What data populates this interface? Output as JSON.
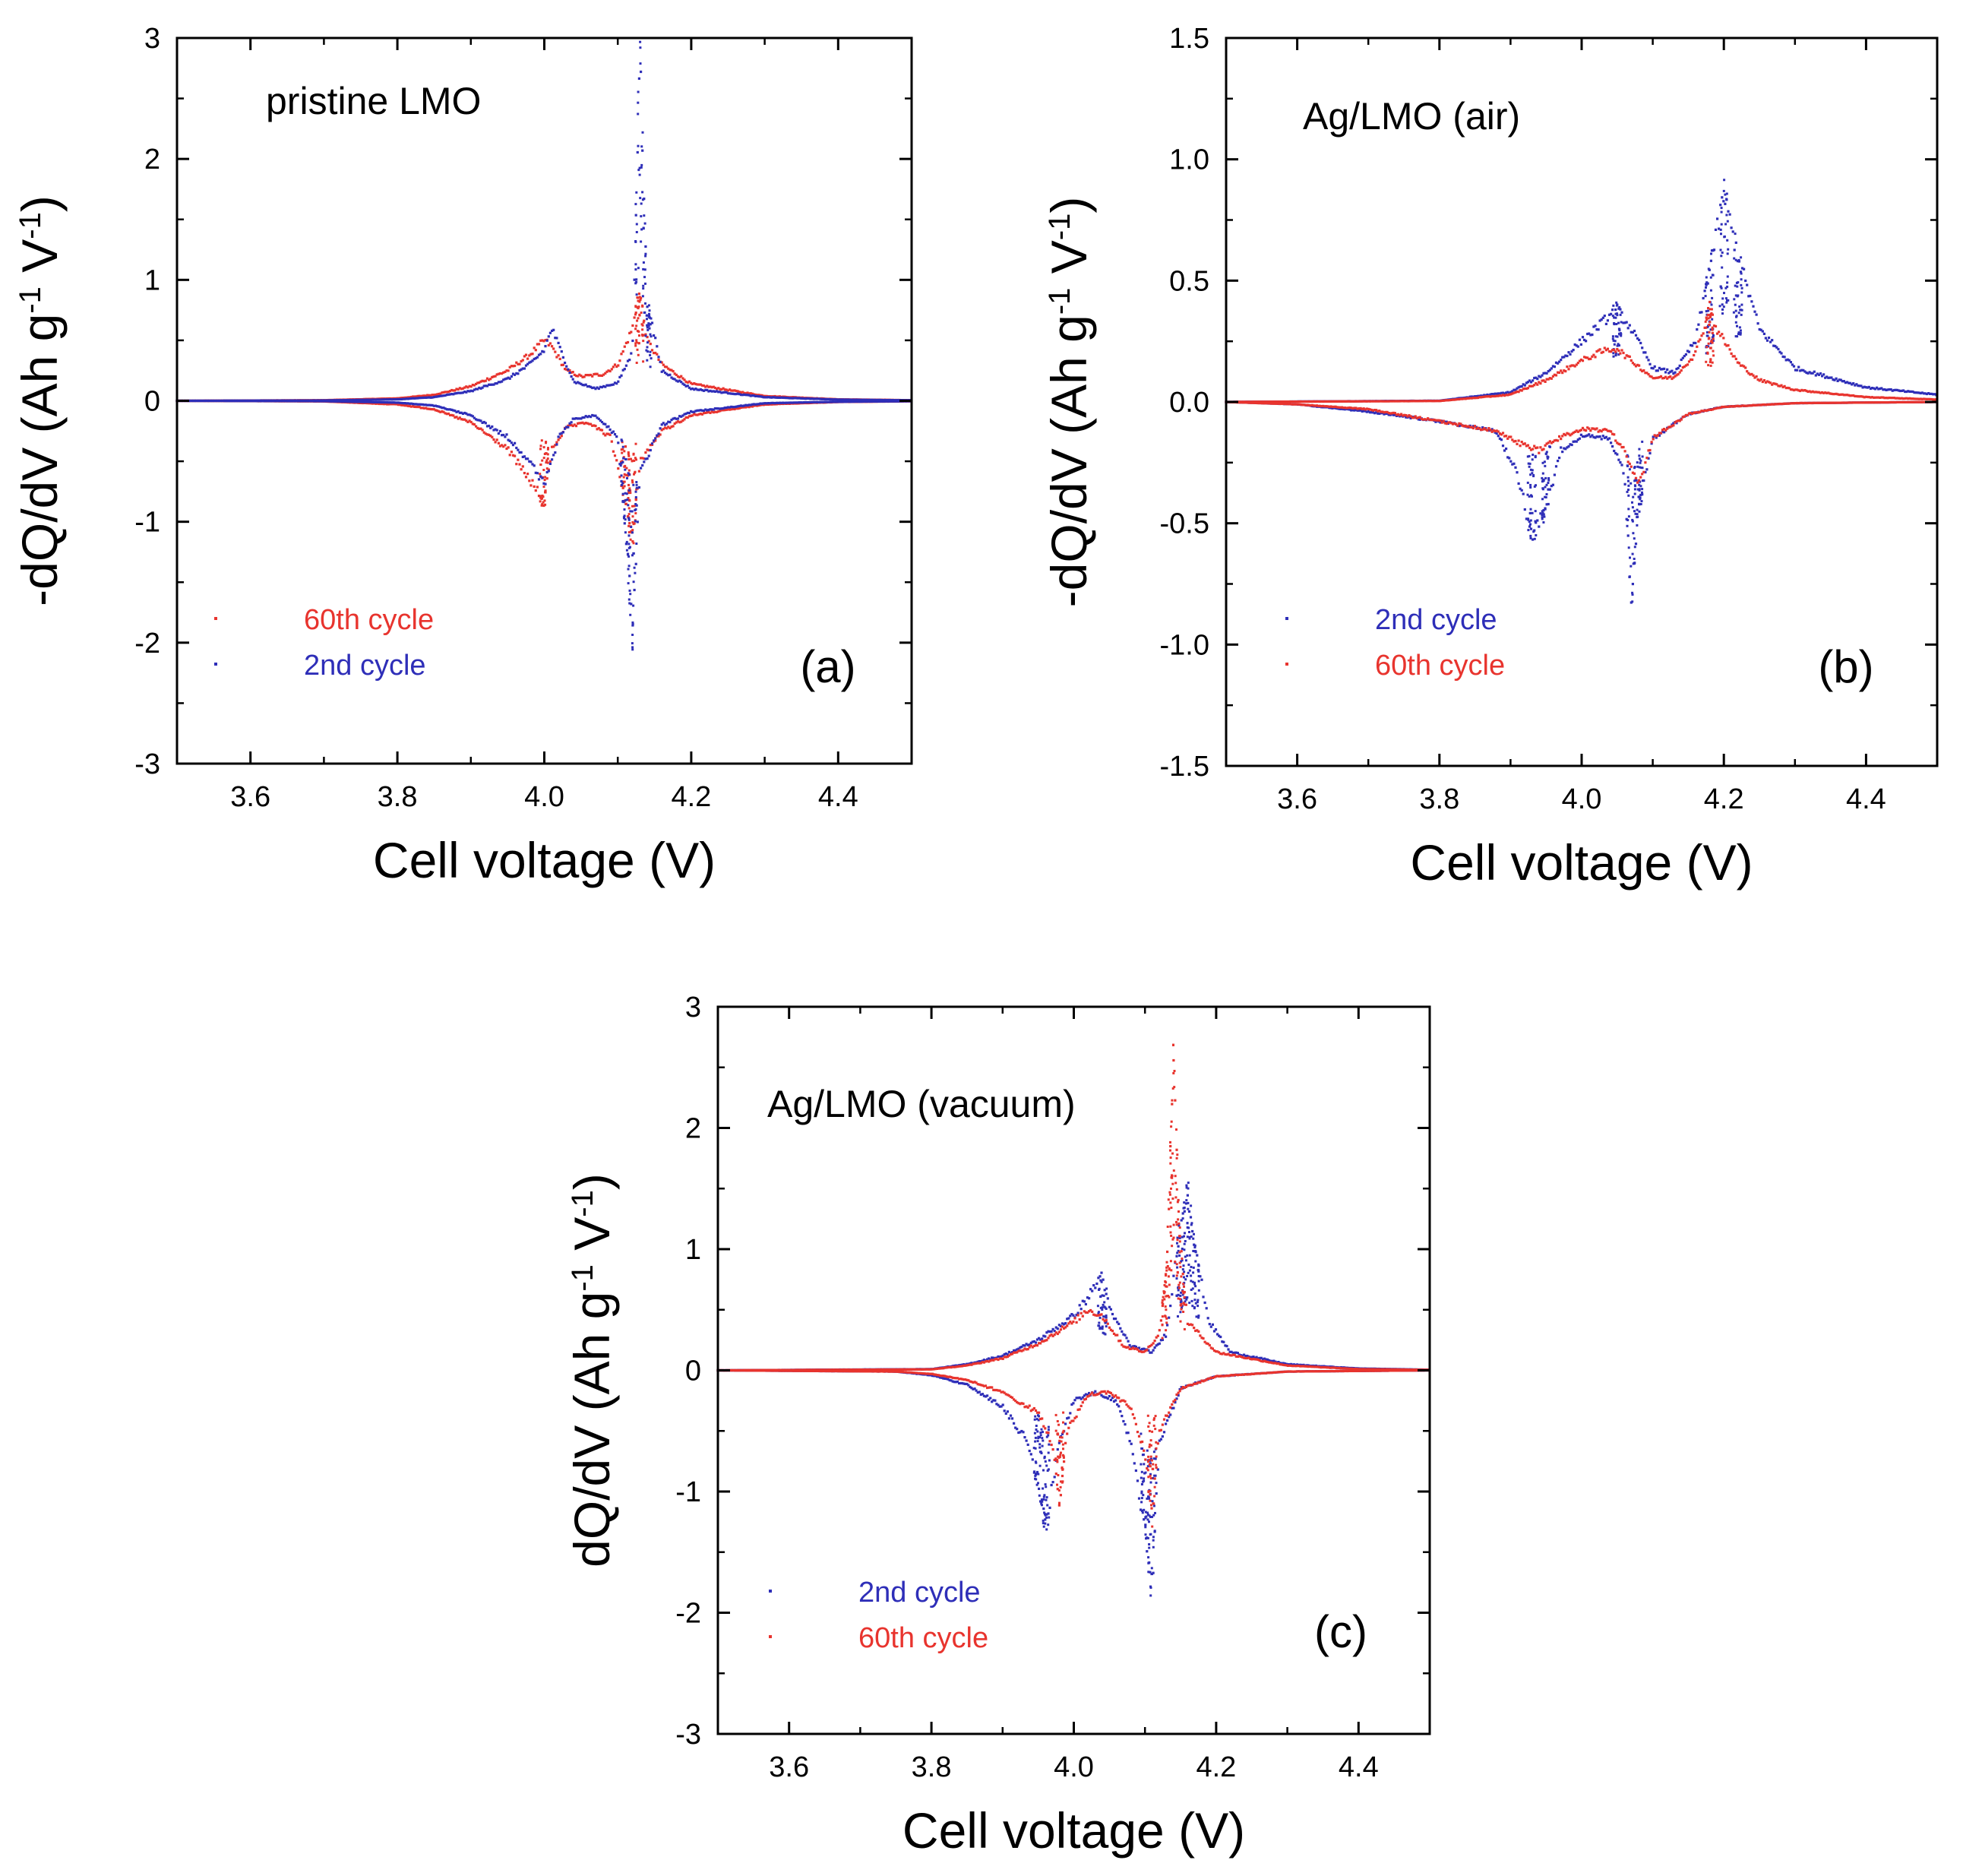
{
  "series_colors": {
    "60th cycle": "#e8342e",
    "2nd cycle": "#2e2eb8"
  },
  "chart_data": [
    {
      "type": "scatter",
      "panel_label": "(a)",
      "annotation": "pristine LMO",
      "xlabel": "Cell voltage (V)",
      "ylabel": {
        "main": "-dQ/dV (Ah g",
        "sup1": "-1",
        "mid": " V",
        "sup2": "-1",
        "end": ")"
      },
      "xlim": [
        3.5,
        4.5
      ],
      "ylim": [
        -3,
        3
      ],
      "xticks": [
        "3.6",
        "3.8",
        "4.0",
        "4.2",
        "4.4"
      ],
      "xtick_values": [
        3.6,
        3.8,
        4.0,
        4.2,
        4.4
      ],
      "yticks": [
        "-3",
        "-2",
        "-1",
        "0",
        "1",
        "2",
        "3"
      ],
      "ytick_values": [
        -3,
        -2,
        -1,
        0,
        1,
        2,
        3
      ],
      "grid": false,
      "legend_placement": "bottom-left",
      "legend": [
        "60th cycle",
        "2nd cycle"
      ],
      "series": [
        {
          "name": "60th cycle",
          "color": "#e8342e",
          "charge": [
            [
              3.5,
              0
            ],
            [
              3.7,
              0.005
            ],
            [
              3.8,
              0.02
            ],
            [
              3.85,
              0.05
            ],
            [
              3.9,
              0.12
            ],
            [
              3.95,
              0.25
            ],
            [
              3.98,
              0.38
            ],
            [
              4.0,
              0.5
            ],
            [
              4.01,
              0.45
            ],
            [
              4.03,
              0.25
            ],
            [
              4.05,
              0.2
            ],
            [
              4.08,
              0.22
            ],
            [
              4.1,
              0.3
            ],
            [
              4.12,
              0.6
            ],
            [
              4.13,
              0.9
            ],
            [
              4.14,
              0.5
            ],
            [
              4.16,
              0.3
            ],
            [
              4.2,
              0.14
            ],
            [
              4.3,
              0.04
            ],
            [
              4.4,
              0.012
            ],
            [
              4.5,
              0.005
            ]
          ],
          "discharge": [
            [
              3.5,
              0
            ],
            [
              3.7,
              -0.005
            ],
            [
              3.8,
              -0.03
            ],
            [
              3.85,
              -0.07
            ],
            [
              3.9,
              -0.18
            ],
            [
              3.95,
              -0.4
            ],
            [
              3.98,
              -0.65
            ],
            [
              4.0,
              -0.85
            ],
            [
              4.01,
              -0.4
            ],
            [
              4.03,
              -0.22
            ],
            [
              4.06,
              -0.18
            ],
            [
              4.09,
              -0.3
            ],
            [
              4.11,
              -0.8
            ],
            [
              4.12,
              -1.2
            ],
            [
              4.13,
              -0.5
            ],
            [
              4.16,
              -0.25
            ],
            [
              4.2,
              -0.12
            ],
            [
              4.3,
              -0.03
            ],
            [
              4.4,
              -0.01
            ],
            [
              4.5,
              -0.004
            ]
          ]
        },
        {
          "name": "2nd cycle",
          "color": "#2e2eb8",
          "charge": [
            [
              3.5,
              0
            ],
            [
              3.7,
              0.003
            ],
            [
              3.8,
              0.012
            ],
            [
              3.85,
              0.03
            ],
            [
              3.9,
              0.08
            ],
            [
              3.95,
              0.18
            ],
            [
              3.98,
              0.3
            ],
            [
              4.0,
              0.42
            ],
            [
              4.01,
              0.6
            ],
            [
              4.02,
              0.45
            ],
            [
              4.04,
              0.16
            ],
            [
              4.07,
              0.1
            ],
            [
              4.1,
              0.15
            ],
            [
              4.12,
              0.4
            ],
            [
              4.13,
              2.9
            ],
            [
              4.14,
              0.8
            ],
            [
              4.16,
              0.25
            ],
            [
              4.2,
              0.1
            ],
            [
              4.3,
              0.03
            ],
            [
              4.4,
              0.01
            ],
            [
              4.5,
              0.004
            ]
          ],
          "discharge": [
            [
              3.5,
              0
            ],
            [
              3.7,
              -0.003
            ],
            [
              3.8,
              -0.015
            ],
            [
              3.85,
              -0.04
            ],
            [
              3.9,
              -0.12
            ],
            [
              3.95,
              -0.3
            ],
            [
              3.98,
              -0.5
            ],
            [
              4.0,
              -0.7
            ],
            [
              4.02,
              -0.3
            ],
            [
              4.04,
              -0.15
            ],
            [
              4.07,
              -0.12
            ],
            [
              4.1,
              -0.3
            ],
            [
              4.11,
              -1.0
            ],
            [
              4.12,
              -1.9
            ],
            [
              4.13,
              -0.6
            ],
            [
              4.16,
              -0.2
            ],
            [
              4.2,
              -0.09
            ],
            [
              4.3,
              -0.02
            ],
            [
              4.4,
              -0.008
            ],
            [
              4.5,
              -0.003
            ]
          ]
        }
      ]
    },
    {
      "type": "scatter",
      "panel_label": "(b)",
      "annotation": "Ag/LMO (air)",
      "xlabel": "Cell voltage (V)",
      "ylabel": {
        "main": "-dQ/dV (Ah g",
        "sup1": "-1",
        "mid": " V",
        "sup2": "-1",
        "end": ")"
      },
      "xlim": [
        3.5,
        4.5
      ],
      "ylim": [
        -1.5,
        1.5
      ],
      "xticks": [
        "3.6",
        "3.8",
        "4.0",
        "4.2",
        "4.4"
      ],
      "xtick_values": [
        3.6,
        3.8,
        4.0,
        4.2,
        4.4
      ],
      "yticks": [
        "-1.5",
        "-1.0",
        "-0.5",
        "0.0",
        "0.5",
        "1.0",
        "1.5"
      ],
      "ytick_values": [
        -1.5,
        -1.0,
        -0.5,
        0.0,
        0.5,
        1.0,
        1.5
      ],
      "grid": false,
      "legend_placement": "bottom-left",
      "legend": [
        "2nd cycle",
        "60th cycle"
      ],
      "series": [
        {
          "name": "2nd cycle",
          "color": "#2e2eb8",
          "charge": [
            [
              3.5,
              0
            ],
            [
              3.8,
              0.005
            ],
            [
              3.9,
              0.04
            ],
            [
              3.95,
              0.12
            ],
            [
              4.0,
              0.25
            ],
            [
              4.03,
              0.33
            ],
            [
              4.05,
              0.38
            ],
            [
              4.07,
              0.3
            ],
            [
              4.1,
              0.14
            ],
            [
              4.13,
              0.12
            ],
            [
              4.16,
              0.25
            ],
            [
              4.18,
              0.55
            ],
            [
              4.2,
              0.85
            ],
            [
              4.22,
              0.6
            ],
            [
              4.25,
              0.3
            ],
            [
              4.3,
              0.14
            ],
            [
              4.4,
              0.06
            ],
            [
              4.5,
              0.03
            ]
          ],
          "discharge": [
            [
              3.5,
              0
            ],
            [
              3.6,
              -0.01
            ],
            [
              3.7,
              -0.04
            ],
            [
              3.8,
              -0.08
            ],
            [
              3.88,
              -0.12
            ],
            [
              3.91,
              -0.3
            ],
            [
              3.93,
              -0.55
            ],
            [
              3.95,
              -0.45
            ],
            [
              3.97,
              -0.2
            ],
            [
              4.0,
              -0.14
            ],
            [
              4.04,
              -0.15
            ],
            [
              4.06,
              -0.3
            ],
            [
              4.07,
              -0.8
            ],
            [
              4.08,
              -0.45
            ],
            [
              4.1,
              -0.15
            ],
            [
              4.15,
              -0.05
            ],
            [
              4.2,
              -0.02
            ],
            [
              4.3,
              -0.005
            ],
            [
              4.5,
              0
            ]
          ]
        },
        {
          "name": "60th cycle",
          "color": "#e8342e",
          "charge": [
            [
              3.5,
              0
            ],
            [
              3.8,
              0.004
            ],
            [
              3.9,
              0.03
            ],
            [
              3.95,
              0.09
            ],
            [
              4.0,
              0.17
            ],
            [
              4.03,
              0.21
            ],
            [
              4.05,
              0.22
            ],
            [
              4.07,
              0.17
            ],
            [
              4.1,
              0.1
            ],
            [
              4.13,
              0.1
            ],
            [
              4.16,
              0.2
            ],
            [
              4.18,
              0.38
            ],
            [
              4.19,
              0.3
            ],
            [
              4.22,
              0.16
            ],
            [
              4.25,
              0.09
            ],
            [
              4.3,
              0.05
            ],
            [
              4.4,
              0.02
            ],
            [
              4.5,
              0.01
            ]
          ],
          "discharge": [
            [
              3.5,
              0
            ],
            [
              3.6,
              -0.01
            ],
            [
              3.7,
              -0.03
            ],
            [
              3.8,
              -0.08
            ],
            [
              3.88,
              -0.12
            ],
            [
              3.92,
              -0.18
            ],
            [
              3.94,
              -0.2
            ],
            [
              3.96,
              -0.16
            ],
            [
              4.0,
              -0.11
            ],
            [
              4.04,
              -0.12
            ],
            [
              4.06,
              -0.2
            ],
            [
              4.08,
              -0.35
            ],
            [
              4.1,
              -0.15
            ],
            [
              4.15,
              -0.05
            ],
            [
              4.2,
              -0.02
            ],
            [
              4.3,
              -0.005
            ],
            [
              4.5,
              0
            ]
          ]
        }
      ]
    },
    {
      "type": "scatter",
      "panel_label": "(c)",
      "annotation": "Ag/LMO (vacuum)",
      "xlabel": "Cell voltage (V)",
      "ylabel": {
        "main": "dQ/dV (Ah g",
        "sup1": "-1",
        "mid": " V",
        "sup2": "-1",
        "end": ")"
      },
      "xlim": [
        3.5,
        4.5
      ],
      "ylim": [
        -3,
        3
      ],
      "xticks": [
        "3.6",
        "3.8",
        "4.0",
        "4.2",
        "4.4"
      ],
      "xtick_values": [
        3.6,
        3.8,
        4.0,
        4.2,
        4.4
      ],
      "yticks": [
        "-3",
        "-2",
        "-1",
        "0",
        "1",
        "2",
        "3"
      ],
      "ytick_values": [
        -3,
        -2,
        -1,
        0,
        1,
        2,
        3
      ],
      "grid": false,
      "legend_placement": "bottom-left",
      "legend": [
        "2nd cycle",
        "60th cycle"
      ],
      "series": [
        {
          "name": "2nd cycle",
          "color": "#2e2eb8",
          "charge": [
            [
              3.5,
              0
            ],
            [
              3.8,
              0.01
            ],
            [
              3.85,
              0.05
            ],
            [
              3.9,
              0.12
            ],
            [
              3.95,
              0.25
            ],
            [
              4.0,
              0.45
            ],
            [
              4.02,
              0.6
            ],
            [
              4.04,
              0.8
            ],
            [
              4.05,
              0.5
            ],
            [
              4.08,
              0.2
            ],
            [
              4.11,
              0.15
            ],
            [
              4.13,
              0.3
            ],
            [
              4.15,
              1.2
            ],
            [
              4.16,
              1.5
            ],
            [
              4.17,
              1.0
            ],
            [
              4.19,
              0.4
            ],
            [
              4.22,
              0.15
            ],
            [
              4.3,
              0.05
            ],
            [
              4.4,
              0.015
            ],
            [
              4.5,
              0.005
            ]
          ],
          "discharge": [
            [
              3.5,
              0
            ],
            [
              3.75,
              -0.01
            ],
            [
              3.8,
              -0.04
            ],
            [
              3.85,
              -0.12
            ],
            [
              3.9,
              -0.3
            ],
            [
              3.93,
              -0.55
            ],
            [
              3.95,
              -0.9
            ],
            [
              3.96,
              -1.3
            ],
            [
              3.98,
              -0.6
            ],
            [
              4.0,
              -0.25
            ],
            [
              4.03,
              -0.18
            ],
            [
              4.06,
              -0.25
            ],
            [
              4.08,
              -0.6
            ],
            [
              4.1,
              -1.3
            ],
            [
              4.11,
              -1.8
            ],
            [
              4.12,
              -0.6
            ],
            [
              4.15,
              -0.15
            ],
            [
              4.2,
              -0.05
            ],
            [
              4.3,
              -0.01
            ],
            [
              4.5,
              0
            ]
          ]
        },
        {
          "name": "60th cycle",
          "color": "#e8342e",
          "charge": [
            [
              3.5,
              0
            ],
            [
              3.8,
              0.008
            ],
            [
              3.85,
              0.04
            ],
            [
              3.9,
              0.1
            ],
            [
              3.95,
              0.22
            ],
            [
              4.0,
              0.4
            ],
            [
              4.02,
              0.5
            ],
            [
              4.04,
              0.45
            ],
            [
              4.07,
              0.2
            ],
            [
              4.1,
              0.15
            ],
            [
              4.12,
              0.3
            ],
            [
              4.13,
              0.8
            ],
            [
              4.14,
              2.5
            ],
            [
              4.15,
              1.0
            ],
            [
              4.16,
              0.4
            ],
            [
              4.2,
              0.15
            ],
            [
              4.3,
              0.04
            ],
            [
              4.4,
              0.01
            ],
            [
              4.5,
              0.004
            ]
          ],
          "discharge": [
            [
              3.5,
              0
            ],
            [
              3.75,
              -0.01
            ],
            [
              3.8,
              -0.03
            ],
            [
              3.85,
              -0.08
            ],
            [
              3.9,
              -0.18
            ],
            [
              3.95,
              -0.35
            ],
            [
              3.97,
              -0.6
            ],
            [
              3.98,
              -1.1
            ],
            [
              3.99,
              -0.5
            ],
            [
              4.02,
              -0.2
            ],
            [
              4.05,
              -0.18
            ],
            [
              4.08,
              -0.3
            ],
            [
              4.1,
              -0.7
            ],
            [
              4.11,
              -1.2
            ],
            [
              4.12,
              -0.5
            ],
            [
              4.15,
              -0.15
            ],
            [
              4.2,
              -0.05
            ],
            [
              4.3,
              -0.01
            ],
            [
              4.5,
              0
            ]
          ]
        }
      ]
    }
  ]
}
